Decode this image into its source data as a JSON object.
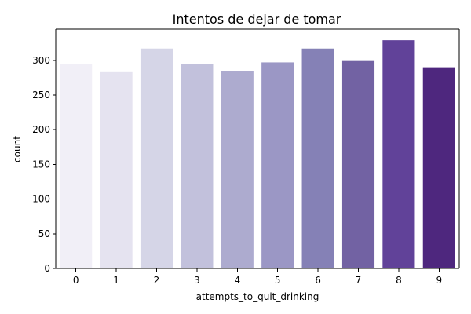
{
  "chart_data": {
    "type": "bar",
    "title": "Intentos de dejar de tomar",
    "xlabel": "attempts_to_quit_drinking",
    "ylabel": "count",
    "categories": [
      "0",
      "1",
      "2",
      "3",
      "4",
      "5",
      "6",
      "7",
      "8",
      "9"
    ],
    "values": [
      295,
      283,
      317,
      295,
      285,
      297,
      317,
      299,
      329,
      290
    ],
    "ylim": [
      0,
      345
    ],
    "yticks": [
      0,
      50,
      100,
      150,
      200,
      250,
      300
    ],
    "grid": false,
    "legend": "none",
    "colors": [
      "#f1eff7",
      "#e5e3f0",
      "#d5d5e7",
      "#c2c1dc",
      "#adabcf",
      "#9b97c5",
      "#8581b6",
      "#7262a3",
      "#614299",
      "#4e277e"
    ]
  }
}
